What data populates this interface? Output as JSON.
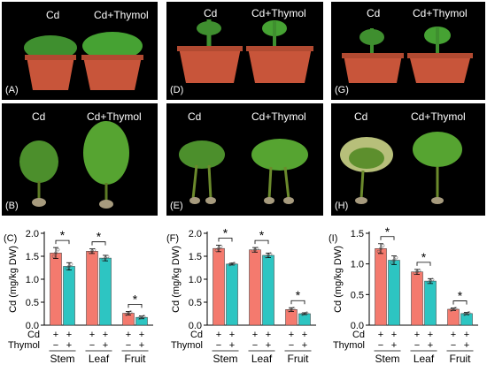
{
  "photo_text": {
    "cd": "Cd",
    "cd_thymol": "Cd+Thymol"
  },
  "photo_panels": [
    {
      "label": "(A)"
    },
    {
      "label": "(D)"
    },
    {
      "label": "(G)"
    },
    {
      "label": "(B)"
    },
    {
      "label": "(E)"
    },
    {
      "label": "(H)"
    }
  ],
  "colors": {
    "cd_bar": "#f47a6e",
    "thymol_bar": "#2dc5c2",
    "pot": "#c8553a",
    "leaf": "#3f8f2f"
  },
  "chart_data": [
    {
      "panel": "(C)",
      "type": "bar",
      "ylabel": "Cd (mg/kg DW)",
      "ylim": [
        0,
        2.0
      ],
      "yticks": [
        "0.0",
        "0.5",
        "1.0",
        "1.5",
        "2.0"
      ],
      "categories": [
        "Stem",
        "Leaf",
        "Fruit"
      ],
      "series": [
        {
          "values": [
            1.57,
            1.61,
            0.26
          ],
          "errors": [
            0.12,
            0.05,
            0.04
          ]
        },
        {
          "values": [
            1.28,
            1.46,
            0.17
          ],
          "errors": [
            0.08,
            0.06,
            0.03
          ]
        }
      ],
      "significance": [
        "*",
        "*",
        "*"
      ],
      "row_labels": [
        "Cd",
        "Thymol"
      ],
      "row_signs": [
        [
          "+",
          "+"
        ],
        [
          "−",
          "+"
        ]
      ]
    },
    {
      "panel": "(F)",
      "type": "bar",
      "ylabel": "Cd (mg/kg DW)",
      "ylim": [
        0,
        2.0
      ],
      "yticks": [
        "0.0",
        "0.5",
        "1.0",
        "1.5",
        "2.0"
      ],
      "categories": [
        "Stem",
        "Leaf",
        "Fruit"
      ],
      "series": [
        {
          "values": [
            1.67,
            1.64,
            0.34
          ],
          "errors": [
            0.07,
            0.05,
            0.04
          ]
        },
        {
          "values": [
            1.33,
            1.52,
            0.25
          ],
          "errors": [
            0.02,
            0.05,
            0.02
          ]
        }
      ],
      "significance": [
        "*",
        "*",
        "*"
      ],
      "row_labels": [
        "Cd",
        "Thymol"
      ],
      "row_signs": [
        [
          "+",
          "+"
        ],
        [
          "−",
          "+"
        ]
      ]
    },
    {
      "panel": "(I)",
      "type": "bar",
      "ylabel": "Cd (mg/kg DW)",
      "ylim": [
        0,
        1.5
      ],
      "yticks": [
        "0.0",
        "0.5",
        "1.0",
        "1.5"
      ],
      "categories": [
        "Stem",
        "Leaf",
        "Fruit"
      ],
      "series": [
        {
          "values": [
            1.25,
            0.87,
            0.26
          ],
          "errors": [
            0.08,
            0.04,
            0.02
          ]
        },
        {
          "values": [
            1.06,
            0.72,
            0.19
          ],
          "errors": [
            0.07,
            0.04,
            0.02
          ]
        }
      ],
      "significance": [
        "*",
        "*",
        "*"
      ],
      "row_labels": [
        "Cd",
        "Thymol"
      ],
      "row_signs": [
        [
          "+",
          "+"
        ],
        [
          "−",
          "+"
        ]
      ]
    }
  ]
}
